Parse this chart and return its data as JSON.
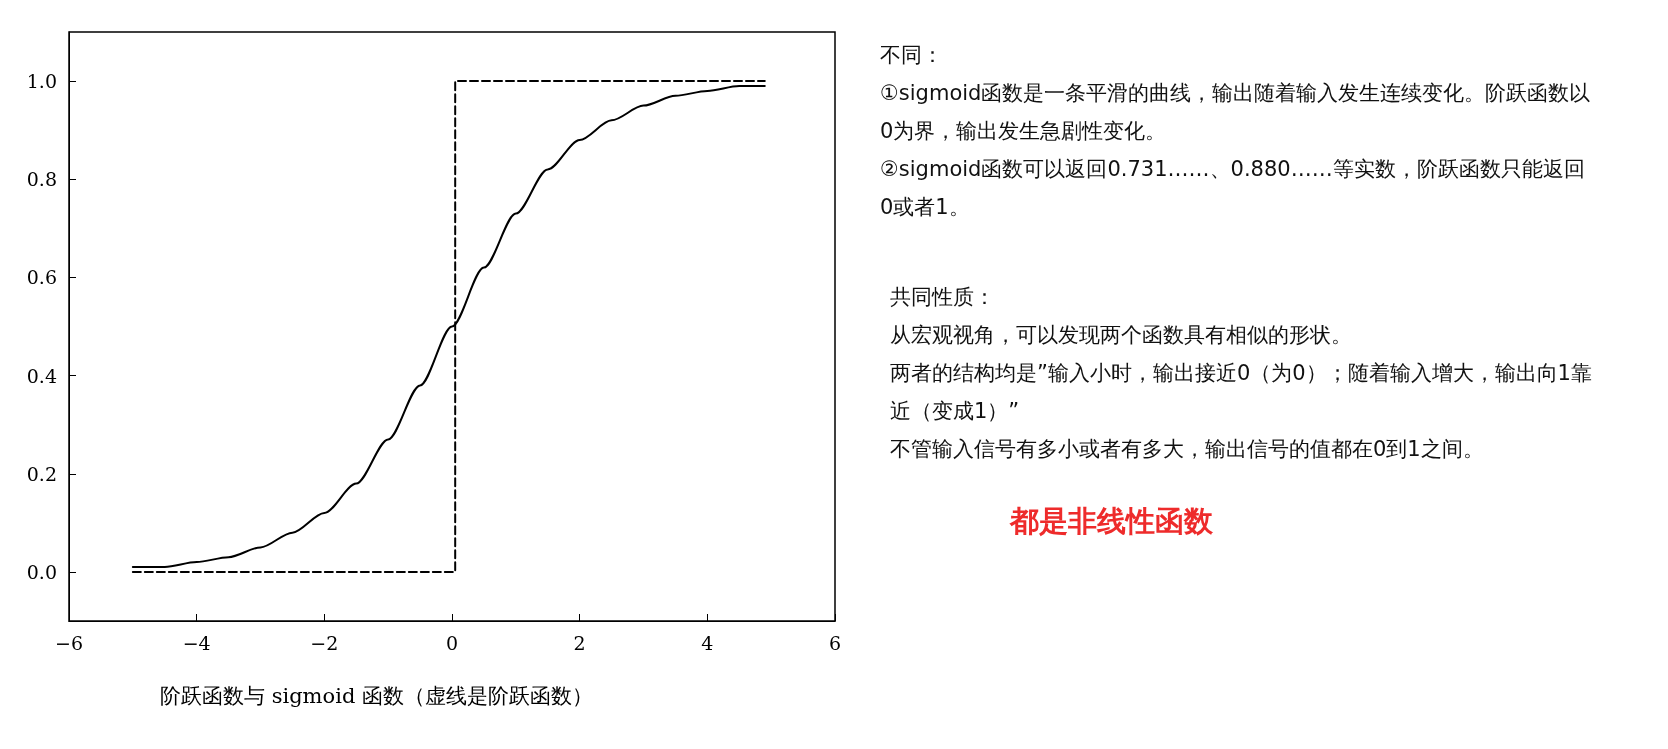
{
  "chart_data": [
    {
      "type": "line",
      "annotations": [
        "阶跃函数与 sigmoid 函数（虚线是阶跃函数）"
      ],
      "xlim": [
        -6,
        6
      ],
      "xticks": [
        -6,
        -4,
        -2,
        0,
        2,
        4,
        6
      ],
      "ylim": [
        -0.1,
        1.1
      ],
      "yticks": [
        {
          "value": 0,
          "label": "0.0"
        },
        {
          "value": 0.2,
          "label": "0.2"
        },
        {
          "value": 0.4,
          "label": "0.4"
        },
        {
          "value": 0.6,
          "label": "0.6"
        },
        {
          "value": 0.8,
          "label": "0.8"
        },
        {
          "value": 1,
          "label": "1.0"
        }
      ],
      "grid": false,
      "marker": "none",
      "series": [
        {
          "color": "#000000",
          "line_style": "solid",
          "x": [
            -5,
            -4.5,
            -4,
            -3.5,
            -3,
            -2.5,
            -2,
            -1.5,
            -1,
            -0.5,
            0,
            0.5,
            1,
            1.5,
            2,
            2.5,
            3,
            3.5,
            4,
            4.5,
            4.9
          ],
          "values": [
            0.01,
            0.01,
            0.02,
            0.03,
            0.05,
            0.08,
            0.12,
            0.18,
            0.27,
            0.38,
            0.5,
            0.62,
            0.73,
            0.82,
            0.88,
            0.92,
            0.95,
            0.97,
            0.98,
            0.99,
            0.99
          ]
        },
        {
          "color": "#000000",
          "line_style": "dashed",
          "x": [
            -5,
            0.05,
            0.05,
            4.9
          ],
          "values": [
            0,
            0,
            1,
            1
          ]
        }
      ]
    },
    {
      "type": "other",
      "annotations": [
        "不同：",
        "①sigmoid函数是一条平滑的曲线，输出随着输入发生连续变化。阶跃函数以0为界，输出发生急剧性变化。",
        "②sigmoid函数可以返回0.731……、0.880……等实数，阶跃函数只能返回0或者1。",
        "共同性质：",
        "从宏观视角，可以发现两个函数具有相似的形状。",
        "两者的结构均是”输入小时，输出接近0（为0）；随着输入增大，输出向1靠近（变成1）”",
        "不管输入信号有多小或者有多大，输出信号的值都在0到1之间。",
        "都是非线性函数"
      ]
    }
  ]
}
